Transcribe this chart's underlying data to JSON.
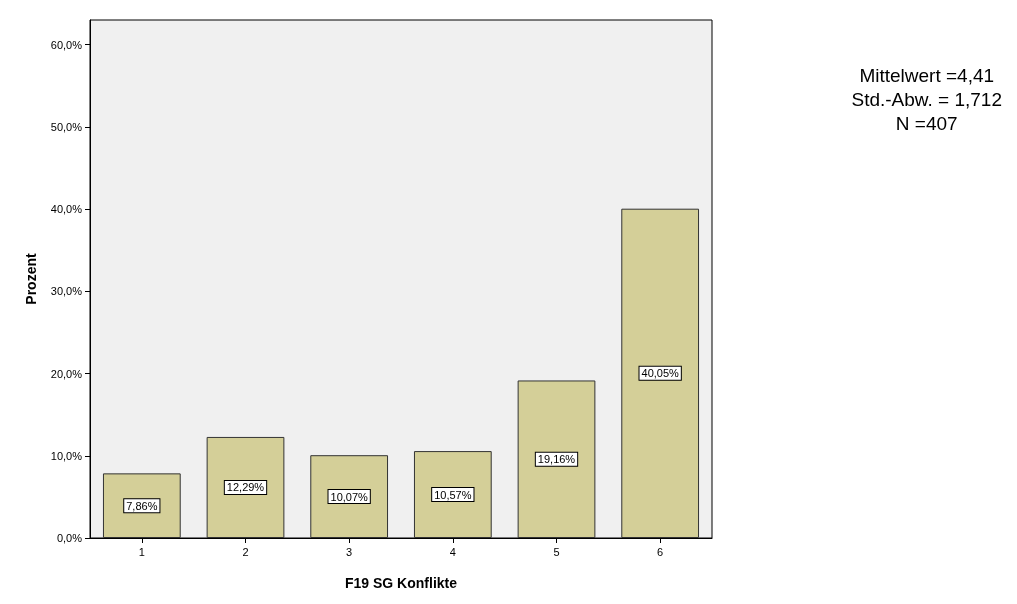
{
  "chart_data": {
    "type": "bar",
    "xlabel": "F19 SG Konflikte",
    "ylabel": "Prozent",
    "categories": [
      "1",
      "2",
      "3",
      "4",
      "5",
      "6"
    ],
    "values": [
      7.86,
      12.29,
      10.07,
      10.57,
      19.16,
      40.05
    ],
    "value_labels": [
      "7,86%",
      "12,29%",
      "10,07%",
      "10,57%",
      "19,16%",
      "40,05%"
    ],
    "color": "#d4cf98",
    "ylim": [
      0,
      63
    ],
    "yticks": [
      {
        "value": 0,
        "label": "0,0%"
      },
      {
        "value": 10,
        "label": "10,0%"
      },
      {
        "value": 20,
        "label": "20,0%"
      },
      {
        "value": 30,
        "label": "30,0%"
      },
      {
        "value": 40,
        "label": "40,0%"
      },
      {
        "value": 50,
        "label": "50,0%"
      },
      {
        "value": 60,
        "label": "60,0%"
      }
    ],
    "grid": false,
    "annotations": [
      "Mittelwert =4,41",
      "Std.-Abw. = 1,712",
      "N =407"
    ]
  }
}
